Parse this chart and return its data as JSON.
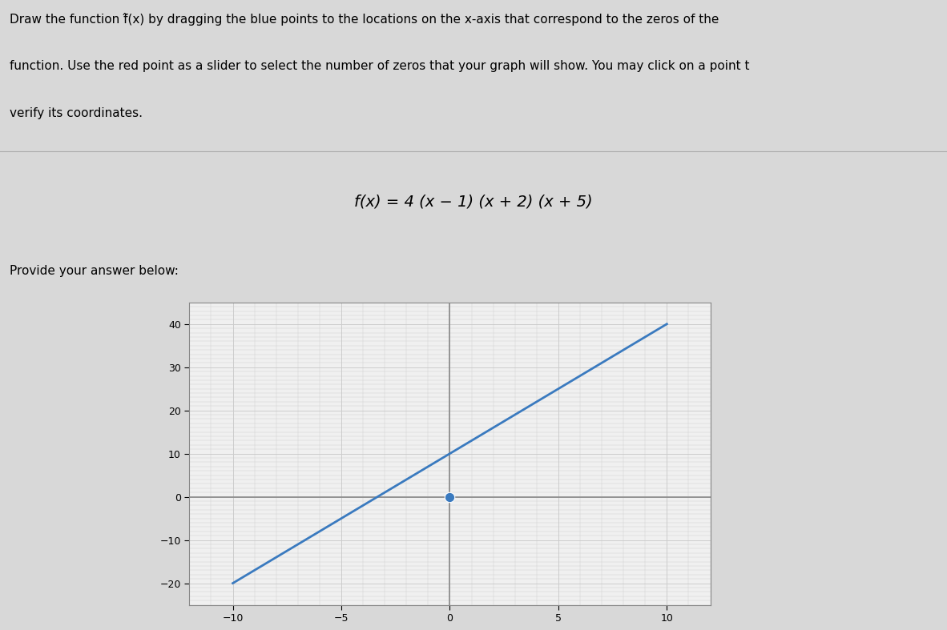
{
  "title_text": "f(x) = 4 (x − 1) (x + 2) (x + 5)",
  "instructions_line1": "Draw the function f̂(x) by dragging the blue points to the locations on the x-axis that correspond to the zeros of the",
  "instructions_line2": "function. Use the red point as a slider to select the number of zeros that your graph will show. You may click on a point t",
  "instructions_line3": "verify its coordinates.",
  "provide_label": "Provide your answer below:",
  "xlim": [
    -12,
    12
  ],
  "ylim": [
    -25,
    45
  ],
  "xticks": [
    -10,
    -5,
    0,
    5,
    10
  ],
  "yticks": [
    -20,
    -10,
    0,
    10,
    20,
    30,
    40
  ],
  "grid_color": "#cccccc",
  "plot_bg_color": "#f0f0f0",
  "line_color": "#3a7abf",
  "line_x": [
    -10,
    10
  ],
  "line_y": [
    -20,
    40
  ],
  "blue_point_x": 0,
  "blue_point_y": 0,
  "blue_point_color": "#3a7abf",
  "page_bg": "#d8d8d8",
  "title_fontsize": 14,
  "instructions_fontsize": 11,
  "provide_fontsize": 11
}
